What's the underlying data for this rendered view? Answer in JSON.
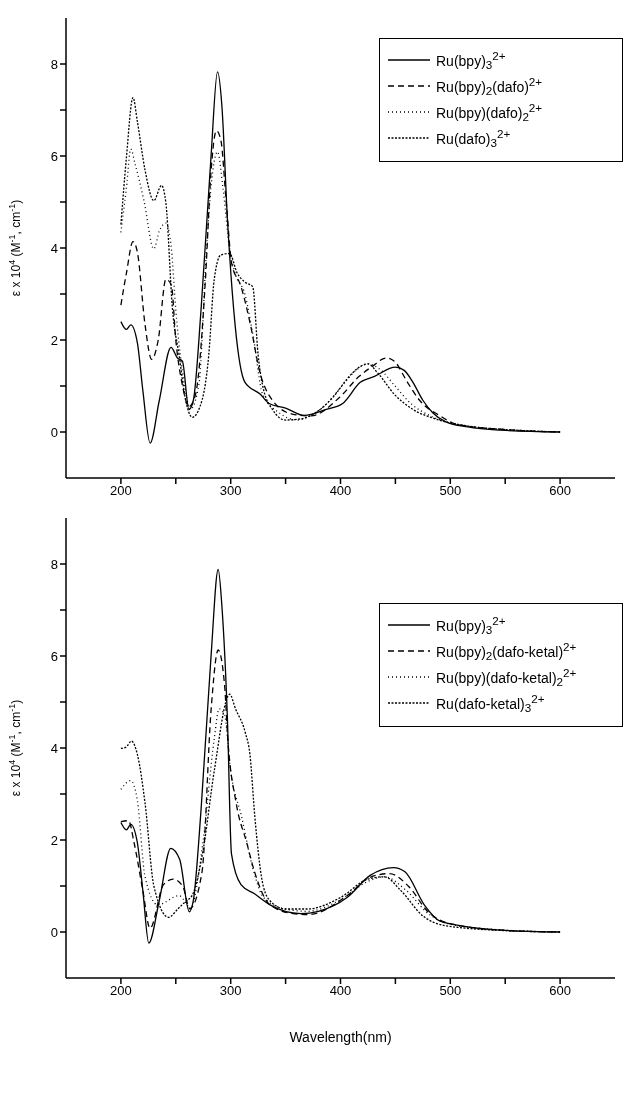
{
  "chart_data": [
    {
      "type": "line",
      "ylabel": "ε x 10$^{4}$ (M$^{-1}$, cm$^{-1}$)",
      "xlim": [
        150,
        650
      ],
      "xticks": [
        200,
        {
          "value": 250,
          "label": null
        },
        300,
        {
          "value": 350,
          "label": null
        },
        400,
        {
          "value": 450,
          "label": null
        },
        500,
        {
          "value": 550,
          "label": null
        },
        600
      ],
      "ylim": [
        -1,
        9
      ],
      "yticks": [
        0,
        {
          "value": 1,
          "label": null
        },
        2,
        {
          "value": 3,
          "label": null
        },
        4,
        {
          "value": 5,
          "label": null
        },
        6,
        {
          "value": 7,
          "label": null
        },
        8
      ],
      "legend": "top right",
      "marker": "none",
      "grid": false,
      "series": [
        {
          "name": "Ru(bpy)$_{3}$$^{2+}$",
          "color": "#000000",
          "line_style": "solid",
          "x": [
            200,
            205,
            209,
            215,
            220,
            226.6,
            235,
            245.6,
            251.5,
            256,
            262,
            266,
            273,
            282,
            288,
            292,
            297,
            304,
            313,
            327,
            335,
            350,
            367,
            387,
            402,
            418,
            431,
            450,
            458,
            466,
            475,
            484,
            496,
            516,
            546,
            600
          ],
          "values": [
            2.4,
            2.23,
            2.33,
            1.94,
            0.9,
            -0.24,
            0.69,
            1.84,
            1.61,
            1.54,
            0.49,
            0.69,
            2.66,
            5.96,
            7.83,
            7.08,
            4.64,
            2.33,
            1.08,
            0.82,
            0.62,
            0.52,
            0.36,
            0.49,
            0.62,
            1.08,
            1.21,
            1.41,
            1.34,
            1.08,
            0.69,
            0.42,
            0.22,
            0.11,
            0.04,
            0
          ]
        },
        {
          "name": "Ru(bpy)$_{2}$(dafo)$^{2+}$",
          "color": "#000000",
          "line_style": "dashed",
          "x": [
            200,
            205,
            211,
            215,
            222,
            228,
            234,
            241,
            246,
            250,
            256,
            262,
            268,
            277,
            282,
            287,
            291,
            296,
            301,
            309,
            318,
            326,
            338,
            356,
            373,
            399,
            417,
            428,
            442,
            449,
            461,
            472,
            490,
            507,
            546,
            600
          ],
          "values": [
            2.76,
            3.45,
            4.14,
            3.91,
            2.33,
            1.58,
            2.0,
            3.32,
            3.19,
            2.0,
            1.02,
            0.55,
            0.82,
            3.32,
            5.63,
            6.55,
            6.35,
            4.97,
            3.65,
            3.19,
            2.33,
            1.35,
            0.69,
            0.39,
            0.35,
            0.75,
            1.21,
            1.41,
            1.61,
            1.54,
            1.08,
            0.69,
            0.36,
            0.16,
            0.06,
            0
          ]
        },
        {
          "name": "Ru(bpy)(dafo)$_{2}$$^{2+}$",
          "color": "#000000",
          "line_style": "dotted",
          "x": [
            200,
            205,
            209,
            213,
            221,
            230,
            235,
            241,
            246,
            250,
            258,
            263,
            271,
            278,
            282,
            288,
            293,
            299,
            304,
            313,
            321,
            329,
            344,
            361,
            373,
            385,
            402,
            414,
            425,
            437,
            449,
            464,
            481,
            502,
            546,
            600
          ],
          "values": [
            4.34,
            5.3,
            6.15,
            5.82,
            5.03,
            3.98,
            4.37,
            4.54,
            3.98,
            2.66,
            1.02,
            0.49,
            1.02,
            3.98,
            5.3,
            6.09,
            5.3,
            3.98,
            3.45,
            2.99,
            2.0,
            0.82,
            0.42,
            0.26,
            0.36,
            0.56,
            1.02,
            1.34,
            1.48,
            1.34,
            1.02,
            0.62,
            0.36,
            0.19,
            0.06,
            0
          ]
        },
        {
          "name": "Ru(dafo)$_{3}$$^{2+}$",
          "color": "#000000",
          "line_style": "dotted",
          "x": [
            200,
            205,
            211,
            215,
            222,
            230,
            237,
            241,
            247,
            253,
            259,
            265,
            272,
            280,
            285,
            291,
            299,
            306,
            313,
            320,
            325,
            329,
            338,
            350,
            365,
            373,
            393,
            408,
            417,
            425,
            434,
            449,
            466,
            487,
            516,
            560,
            600
          ],
          "values": [
            4.51,
            5.96,
            7.27,
            6.75,
            5.69,
            5.03,
            5.36,
            4.97,
            2.66,
            1.67,
            0.69,
            0.32,
            0.55,
            1.67,
            3.32,
            3.85,
            3.88,
            3.45,
            3.26,
            3.16,
            1.67,
            1.02,
            0.49,
            0.26,
            0.29,
            0.36,
            0.75,
            1.21,
            1.41,
            1.48,
            1.28,
            0.82,
            0.49,
            0.28,
            0.13,
            0.04,
            0
          ]
        }
      ]
    },
    {
      "type": "line",
      "xlabel": "Wavelength(nm)",
      "ylabel": "ε x 10$^{4}$ (M$^{-1}$, cm$^{-1}$)",
      "xlim": [
        150,
        650
      ],
      "xticks": [
        200,
        {
          "value": 250,
          "label": null
        },
        300,
        {
          "value": 350,
          "label": null
        },
        400,
        {
          "value": 450,
          "label": null
        },
        500,
        {
          "value": 550,
          "label": null
        },
        600
      ],
      "ylim": [
        -1,
        9
      ],
      "yticks": [
        0,
        {
          "value": 1,
          "label": null
        },
        2,
        {
          "value": 3,
          "label": null
        },
        4,
        {
          "value": 5,
          "label": null
        },
        6,
        {
          "value": 7,
          "label": null
        },
        8
      ],
      "legend": "right",
      "marker": "none",
      "grid": false,
      "series": [
        {
          "name": "Ru(bpy)$_{3}$$^{2+}$",
          "color": "#000000",
          "line_style": "solid",
          "x": [
            200,
            205,
            209,
            215,
            220,
            225.4,
            235,
            245.4,
            253.5,
            262.3,
            266,
            273,
            282,
            288.6,
            292,
            297,
            300.7,
            309.4,
            321.7,
            335.8,
            363.9,
            380,
            406,
            427,
            448.2,
            458.7,
            476.3,
            490.3,
            511.4,
            546.5,
            600
          ],
          "values": [
            2.38,
            2.22,
            2.34,
            1.94,
            0.9,
            -0.24,
            0.69,
            1.82,
            1.58,
            0.44,
            0.69,
            2.66,
            5.96,
            7.88,
            7.08,
            4.64,
            1.7,
            1.03,
            0.83,
            0.59,
            0.4,
            0.45,
            0.75,
            1.23,
            1.4,
            1.31,
            0.59,
            0.24,
            0.13,
            0.04,
            0
          ]
        },
        {
          "name": "Ru(bpy)$_{2}$(dafo-ketal)$^{2+}$",
          "color": "#000000",
          "line_style": "dashed",
          "x": [
            200,
            207,
            212,
            220,
            226.5,
            238.8,
            247.6,
            256.4,
            262.7,
            273.9,
            282.2,
            288.6,
            294.4,
            297.4,
            305,
            314.6,
            321.7,
            335.8,
            356.9,
            370.9,
            406,
            427,
            444.6,
            462.1,
            479.7,
            497.2,
            546.5,
            600
          ],
          "values": [
            2.4,
            2.42,
            1.94,
            0.9,
            0.08,
            1.03,
            1.15,
            0.99,
            0.51,
            1.31,
            4.85,
            6.13,
            5.37,
            4.18,
            2.8,
            1.94,
            1.31,
            0.59,
            0.4,
            0.38,
            0.79,
            1.19,
            1.27,
            0.99,
            0.44,
            0.2,
            0.04,
            0
          ]
        },
        {
          "name": "Ru(bpy)(dafo-ketal)$_{2}$$^{2+}$",
          "color": "#000000",
          "line_style": "dotted",
          "x": [
            200,
            209,
            215,
            222,
            233.6,
            253,
            260,
            263,
            275,
            285,
            289.5,
            294.4,
            300,
            310,
            320,
            330,
            350,
            370,
            400,
            425,
            440,
            460,
            480,
            500,
            550,
            600
          ],
          "values": [
            3.1,
            3.29,
            2.86,
            1.2,
            0.59,
            0.79,
            0.6,
            0.5,
            2.0,
            4.2,
            4.85,
            4.72,
            3.5,
            2.5,
            1.4,
            0.75,
            0.5,
            0.45,
            0.7,
            1.1,
            1.2,
            0.9,
            0.4,
            0.17,
            0.04,
            0
          ]
        },
        {
          "name": "Ru(dafo-ketal)$_{3}$$^{2+}$",
          "color": "#000000",
          "line_style": "dotted",
          "x": [
            200,
            204.7,
            209.6,
            215,
            222,
            230,
            243.4,
            252.2,
            259.2,
            265,
            275,
            285,
            299.1,
            304.4,
            313.2,
            317.5,
            322,
            328,
            335,
            350,
            370,
            400,
            425,
            440,
            455,
            475,
            495,
            550,
            600
          ],
          "values": [
            3.99,
            4.02,
            4.15,
            3.86,
            2.8,
            1.0,
            0.32,
            0.51,
            0.67,
            0.8,
            1.8,
            3.5,
            5.17,
            4.85,
            4.34,
            3.86,
            2.5,
            1.2,
            0.7,
            0.5,
            0.5,
            0.75,
            1.15,
            1.2,
            0.9,
            0.35,
            0.14,
            0.03,
            0
          ]
        }
      ]
    }
  ]
}
